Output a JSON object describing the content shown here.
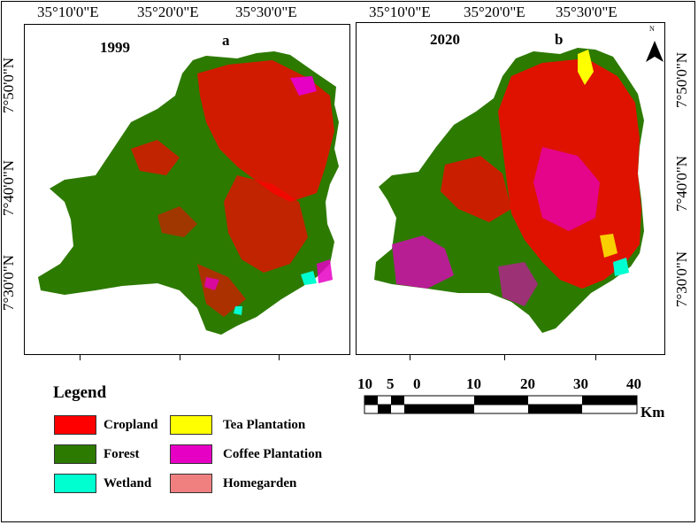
{
  "top_coords": [
    "35°10'0\"E",
    "35°20'0\"E",
    "35°30'0\"E"
  ],
  "left_coords": [
    "7°50'0\"N",
    "7°40'0\"N",
    "7°30'0\"N"
  ],
  "panels": [
    {
      "year": "1999",
      "letter": "a"
    },
    {
      "year": "2020",
      "letter": "b"
    }
  ],
  "north_label": "N",
  "legend": {
    "title": "Legend",
    "items": [
      {
        "label": "Cropland",
        "color": "#ff0000"
      },
      {
        "label": "Forest",
        "color": "#2d7a00"
      },
      {
        "label": "Wetland",
        "color": "#00ffd0"
      },
      {
        "label": "Tea Plantation",
        "color": "#ffff00"
      },
      {
        "label": "Coffee Plantation",
        "color": "#e600c4"
      },
      {
        "label": "Homegarden",
        "color": "#f08080"
      }
    ]
  },
  "scale_bar": {
    "numbers": [
      "10",
      "5",
      "0",
      "10",
      "20",
      "30",
      "40"
    ],
    "unit": "Km"
  }
}
